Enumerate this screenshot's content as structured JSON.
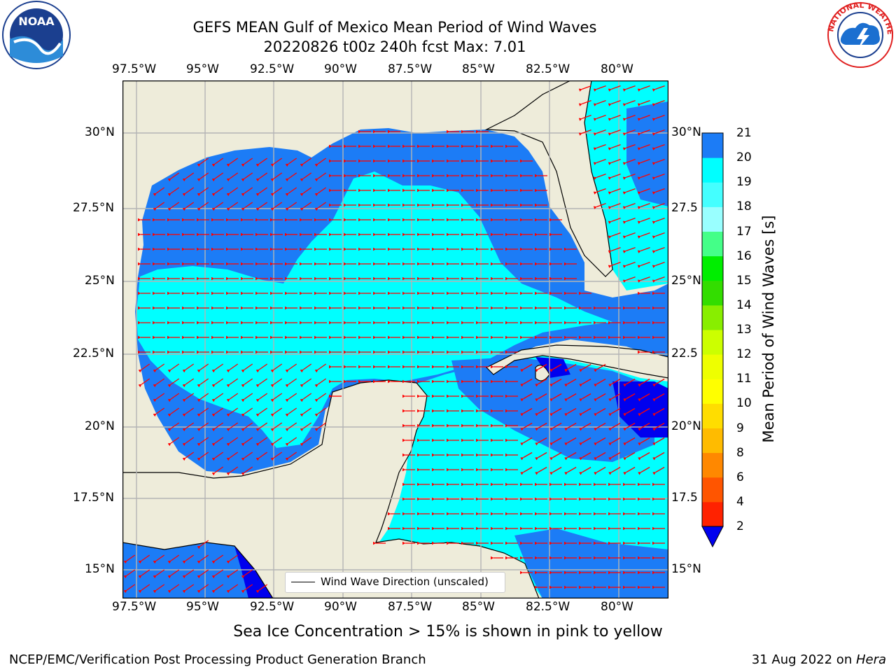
{
  "header": {
    "title_line1": "GEFS MEAN Gulf of Mexico Mean Period of Wind Waves",
    "title_line2": "20220826 t00z 240h fcst   Max: 7.01"
  },
  "logos": {
    "left": "NOAA",
    "right": "NATIONAL WEATHER SERVICE"
  },
  "map": {
    "lon_labels": [
      "97.5°W",
      "95°W",
      "92.5°W",
      "90°W",
      "87.5°W",
      "85°W",
      "82.5°W",
      "80°W"
    ],
    "lat_labels_left": [
      "30°N",
      "27.5°N",
      "25°N",
      "22.5°N",
      "20°N",
      "17.5°N",
      "15°N"
    ],
    "lat_labels_right": [
      "30°N",
      "27.5",
      "25°N",
      "22.5",
      "20°N",
      "17.5",
      "15°N"
    ],
    "legend_label": "Wind Wave Direction (unscaled)",
    "colors": {
      "land": "#eeecda",
      "ocean_2_4": "#1c7cf6",
      "ocean_4_6": "#00ffff",
      "below_2": "#0000ee",
      "arrow": "#ff0000",
      "grid": "#b4b4b4"
    }
  },
  "colorbar": {
    "label": "Mean Period of Wind Waves [s]",
    "ticks": [
      "2",
      "4",
      "6",
      "8",
      "9",
      "10",
      "11",
      "12",
      "13",
      "14",
      "15",
      "16",
      "17",
      "18",
      "19",
      "20",
      "21"
    ],
    "colors": [
      "#1c7cf6",
      "#00ffff",
      "#44ffff",
      "#99ffff",
      "#44ff88",
      "#00ee00",
      "#33dd00",
      "#88ee00",
      "#ccff00",
      "#eeff00",
      "#ffff00",
      "#ffdd00",
      "#ffbb00",
      "#ff8800",
      "#ff5500",
      "#ff2200",
      "#ff0000"
    ],
    "under_color": "#0000ee"
  },
  "footer": {
    "note": "Sea Ice Concentration > 15% is shown in pink to yellow",
    "left": "NCEP/EMC/Verification Post Processing Product Generation Branch",
    "right_date": "31 Aug 2022 on ",
    "right_host": "Hera"
  }
}
